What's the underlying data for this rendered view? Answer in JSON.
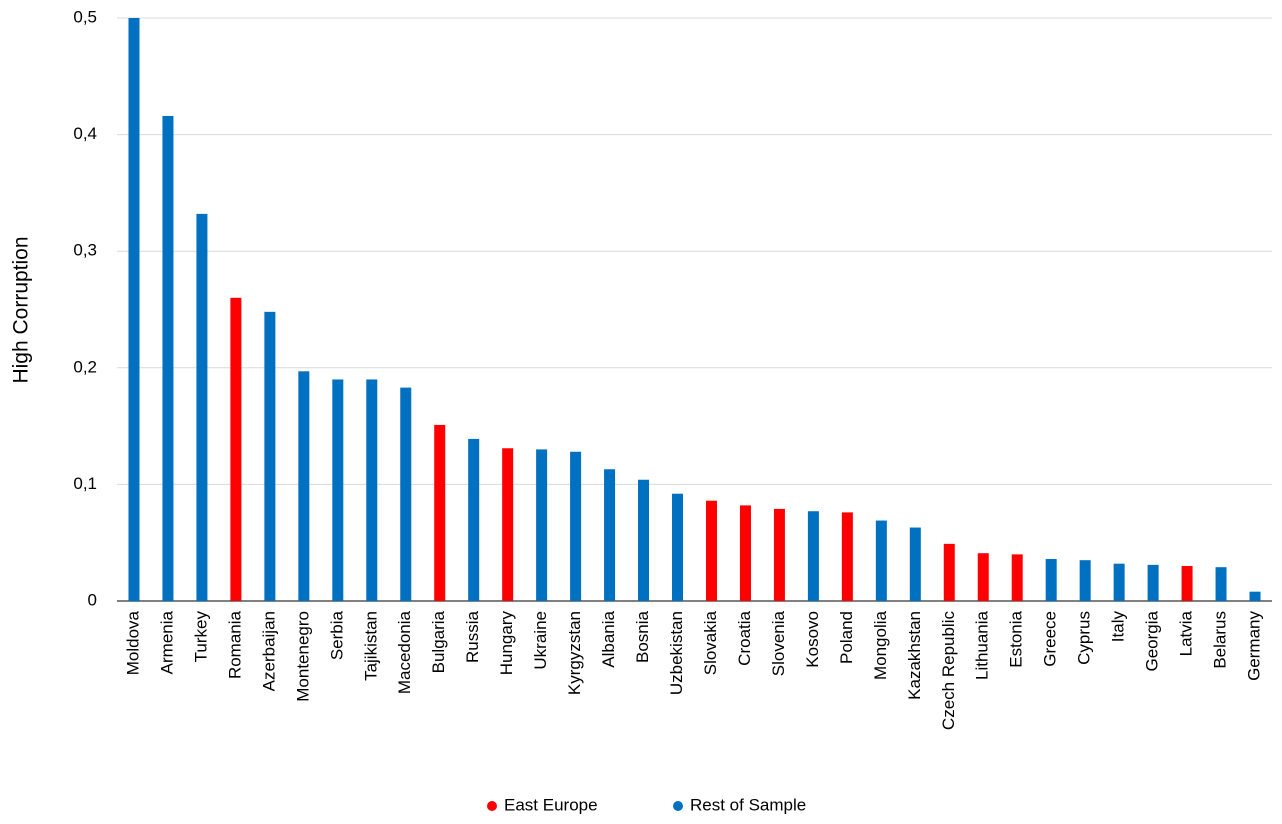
{
  "chart_data": {
    "type": "bar",
    "y_label": "High Corruption",
    "categories": [
      "Moldova",
      "Armenia",
      "Turkey",
      "Romania",
      "Azerbaijan",
      "Montenegro",
      "Serbia",
      "Tajikistan",
      "Macedonia",
      "Bulgaria",
      "Russia",
      "Hungary",
      "Ukraine",
      "Kyrgyzstan",
      "Albania",
      "Bosnia",
      "Uzbekistan",
      "Slovakia",
      "Croatia",
      "Slovenia",
      "Kosovo",
      "Poland",
      "Mongolia",
      "Kazakhstan",
      "Czech Republic",
      "Lithuania",
      "Estonia",
      "Greece",
      "Cyprus",
      "Italy",
      "Georgia",
      "Latvia",
      "Belarus",
      "Germany"
    ],
    "series": [
      {
        "name": "East Europe",
        "color": "#ff0000",
        "values": [
          null,
          null,
          null,
          0.26,
          null,
          null,
          null,
          null,
          null,
          0.151,
          null,
          0.131,
          null,
          null,
          null,
          null,
          null,
          0.086,
          0.082,
          0.079,
          null,
          0.076,
          null,
          null,
          0.049,
          0.041,
          0.04,
          null,
          null,
          null,
          null,
          0.03,
          null,
          null
        ]
      },
      {
        "name": "Rest of Sample",
        "color": "#0070c0",
        "values": [
          0.5,
          0.416,
          0.332,
          null,
          0.248,
          0.197,
          0.19,
          0.19,
          0.183,
          null,
          0.139,
          null,
          0.13,
          0.128,
          0.113,
          0.104,
          0.092,
          null,
          null,
          null,
          0.077,
          null,
          0.069,
          0.063,
          null,
          null,
          null,
          0.036,
          0.035,
          0.032,
          0.031,
          null,
          0.029,
          0.008
        ]
      }
    ],
    "ylim": [
      0,
      0.5
    ],
    "yticks": [
      0,
      {
        "value": 0.1,
        "label": "0,1"
      },
      {
        "value": 0.2,
        "label": "0,2"
      },
      {
        "value": 0.3,
        "label": "0,3"
      },
      {
        "value": 0.4,
        "label": "0,4"
      },
      {
        "value": 0.5,
        "label": "0,5"
      }
    ],
    "grid": true,
    "legend": "bottom"
  }
}
